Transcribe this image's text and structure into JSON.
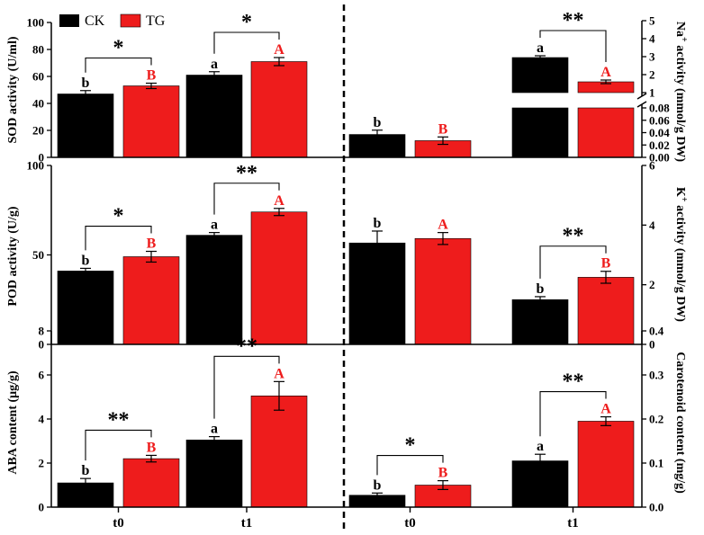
{
  "colors": {
    "ck": "#000000",
    "tg": "#ee1c1c",
    "axis": "#000000",
    "tg_letter": "#ee1c1c",
    "ck_letter": "#000000"
  },
  "chart_data": [
    {
      "id": "sod",
      "type": "bar",
      "ylabel": "SOD activity (U/ml)",
      "ylim": [
        0,
        100
      ],
      "yticks": [
        "0",
        "20",
        "40",
        "60",
        "80",
        "100"
      ],
      "categories": [
        "t0",
        "t1"
      ],
      "legend": [
        "CK",
        "TG"
      ],
      "series": [
        {
          "name": "CK",
          "values": [
            47,
            61
          ],
          "errors": [
            2.5,
            2.5
          ],
          "letters": [
            "b",
            "a"
          ]
        },
        {
          "name": "TG",
          "values": [
            53,
            71
          ],
          "errors": [
            2,
            3
          ],
          "letters": [
            "B",
            "A"
          ]
        }
      ],
      "significance": [
        "*",
        "*"
      ]
    },
    {
      "id": "na",
      "type": "bar",
      "ylabel": "Na+ activity (mmol/g DW)",
      "yticks_upper": [
        "1",
        "2",
        "3",
        "4",
        "5"
      ],
      "yticks_lower": [
        "0.00",
        "0.02",
        "0.04",
        "0.06",
        "0.08"
      ],
      "axis_break": "0.08 / 1",
      "categories": [
        "t0",
        "t1"
      ],
      "series": [
        {
          "name": "CK",
          "values": [
            0.037,
            2.95
          ],
          "errors": [
            0.007,
            0.1
          ],
          "letters": [
            "",
            "a"
          ]
        },
        {
          "name": "TG",
          "values": [
            0.027,
            1.6
          ],
          "errors": [
            0.006,
            0.1
          ],
          "letters": [
            "B",
            "A"
          ]
        }
      ],
      "significance": [
        "",
        "**"
      ]
    },
    {
      "id": "pod",
      "type": "bar",
      "ylabel": "POD activity (U/g)",
      "ylim": [
        0,
        100
      ],
      "yticks": [
        "0",
        "50",
        "100"
      ],
      "categories": [
        "t0",
        "t1"
      ],
      "series": [
        {
          "name": "CK",
          "values": [
            41,
            61
          ],
          "errors": [
            1.5,
            1.5
          ],
          "letters": [
            "b",
            "a"
          ]
        },
        {
          "name": "TG",
          "values": [
            49,
            74
          ],
          "errors": [
            3,
            2
          ],
          "letters": [
            "B",
            "A"
          ]
        }
      ],
      "significance": [
        "*",
        "**"
      ]
    },
    {
      "id": "k",
      "type": "bar",
      "ylabel": "K+ activity (mmol/g DW)",
      "ylim": [
        0,
        6
      ],
      "yticks": [
        "0",
        "2",
        "4",
        "6"
      ],
      "categories": [
        "t0",
        "t1"
      ],
      "series": [
        {
          "name": "CK",
          "values": [
            3.4,
            1.5
          ],
          "errors": [
            0.4,
            0.1
          ],
          "letters": [
            "b",
            "b"
          ]
        },
        {
          "name": "TG",
          "values": [
            3.55,
            2.25
          ],
          "errors": [
            0.2,
            0.2
          ],
          "letters": [
            "A",
            "B"
          ]
        }
      ],
      "significance": [
        "",
        "**"
      ]
    },
    {
      "id": "aba",
      "type": "bar",
      "ylabel": "ABA content (μg/g)",
      "ylim": [
        0,
        8
      ],
      "yticks": [
        "0",
        "2",
        "4",
        "6",
        "8"
      ],
      "categories": [
        "t0",
        "t1"
      ],
      "series": [
        {
          "name": "CK",
          "values": [
            1.1,
            3.05
          ],
          "errors": [
            0.2,
            0.15
          ],
          "letters": [
            "b",
            "a"
          ]
        },
        {
          "name": "TG",
          "values": [
            2.2,
            5.05
          ],
          "errors": [
            0.15,
            0.65
          ],
          "letters": [
            "B",
            "A"
          ]
        }
      ],
      "significance": [
        "**",
        "**"
      ]
    },
    {
      "id": "car",
      "type": "bar",
      "ylabel": "Carotenoid content (mg/g)",
      "ylim": [
        0,
        0.4
      ],
      "yticks": [
        "0.0",
        "0.1",
        "0.2",
        "0.3",
        "0.4"
      ],
      "categories": [
        "t0",
        "t1"
      ],
      "series": [
        {
          "name": "CK",
          "values": [
            0.027,
            0.105
          ],
          "errors": [
            0.005,
            0.015
          ],
          "letters": [
            "b",
            "a"
          ]
        },
        {
          "name": "TG",
          "values": [
            0.05,
            0.195
          ],
          "errors": [
            0.01,
            0.01
          ],
          "letters": [
            "B",
            "A"
          ]
        }
      ],
      "significance": [
        "*",
        "**"
      ]
    }
  ]
}
